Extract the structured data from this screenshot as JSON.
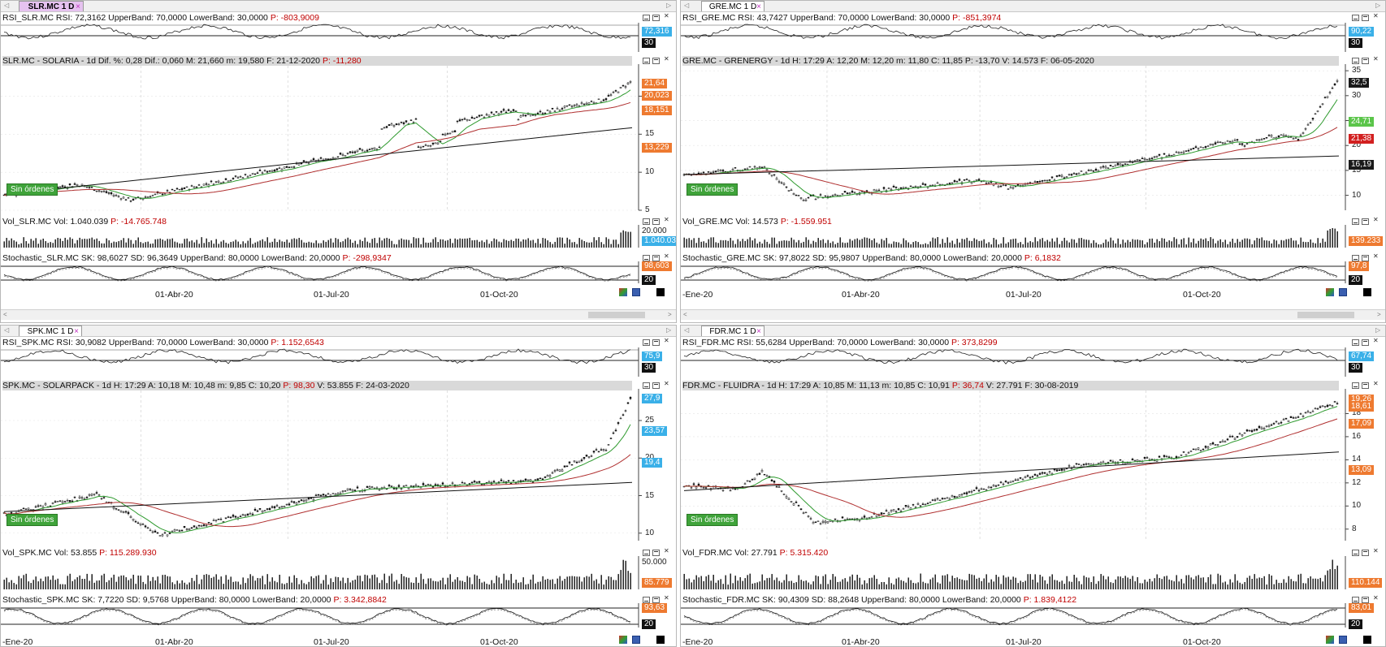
{
  "panels": [
    {
      "id": "slr",
      "tab_label": "SLR.MC 1 D",
      "tab_close": "×",
      "rsi": {
        "header": "RSI_SLR.MC  RSI: 72,3162  UpperBand: 70,0000  LowerBand: 30,0000",
        "p": "P: -803,9009",
        "label_value": "72,316",
        "label_band": "30"
      },
      "price": {
        "header": "SLR.MC - SOLARIA - 1d  Dif. %: 0,28  Dif.: 0,060  M: 21,660  m: 19,580  F: 21-12-2020",
        "p": "P: -11,280",
        "labels": [
          {
            "text": "21,64",
            "color": "orange"
          },
          {
            "text": "20,023",
            "color": "orange"
          },
          {
            "text": "18,151",
            "color": "orange"
          },
          {
            "text": "13,229",
            "color": "orange"
          }
        ],
        "ticks": [
          "20",
          "15",
          "10",
          "5"
        ],
        "orders_button": "Sin órdenes"
      },
      "vol": {
        "header": "Vol_SLR.MC  Vol: 1.040.039",
        "p": "P: -14.765.748",
        "label_value": "1.040.03",
        "ticks": [
          "20.000"
        ]
      },
      "stoch": {
        "header": "Stochastic_SLR.MC  SK: 98,6027  SD: 96,3649  UpperBand: 80,0000  LowerBand: 20,0000",
        "p": "P: -298,9347",
        "label_value": "98,603",
        "label_band": "20"
      },
      "dates": [
        "01-Abr-20",
        "01-Jul-20",
        "01-Oct-20"
      ]
    },
    {
      "id": "gre",
      "tab_label": "GRE.MC 1 D",
      "tab_close": "×",
      "rsi": {
        "header": "RSI_GRE.MC  RSI: 43,7427  UpperBand: 70,0000  LowerBand: 30,0000",
        "p": "P: -851,3974",
        "label_value": "90,22",
        "label_band": "30",
        "extra_band": "70"
      },
      "price": {
        "header": "GRE.MC - GRENERGY - 1d  H: 17:29  A: 12,20  M: 12,20  m: 11,80  C: 11,85  P: -13,70  V: 14.573  F: 06-05-2020",
        "p": "",
        "labels": [
          {
            "text": "32,5",
            "color": "dark"
          },
          {
            "text": "24,71",
            "color": "green"
          },
          {
            "text": "21,38",
            "color": "red"
          },
          {
            "text": "16,19",
            "color": "dark"
          }
        ],
        "ticks": [
          "35",
          "30",
          "25",
          "20",
          "15",
          "10"
        ],
        "orders_button": "Sin órdenes"
      },
      "vol": {
        "header": "Vol_GRE.MC  Vol: 14.573",
        "p": "P: -1.559.951",
        "label_value": "139.233"
      },
      "stoch": {
        "header": "Stochastic_GRE.MC  SK: 97,8022  SD: 95,9807  UpperBand: 80,0000  LowerBand: 20,0000",
        "p": "P: 6,1832",
        "label_value": "97,8",
        "label_band": "20"
      },
      "dates": [
        "-Ene-20",
        "01-Abr-20",
        "01-Jul-20",
        "01-Oct-20"
      ]
    },
    {
      "id": "spk",
      "tab_label": "SPK.MC 1 D",
      "tab_close": "×",
      "rsi": {
        "header": "RSI_SPK.MC  RSI: 30,9082  UpperBand: 70,0000  LowerBand: 30,0000",
        "p": "P: 1.152,6543",
        "label_value": "75,9",
        "label_band": "30"
      },
      "price": {
        "header": "SPK.MC - SOLARPACK - 1d  H: 17:29  A: 10,18  M: 10,48  m: 9,85  C: 10,20",
        "p": "P: 98,30",
        "tail": "V: 53.855  F: 24-03-2020",
        "labels": [
          {
            "text": "27,9",
            "color": "blue"
          },
          {
            "text": "23,57",
            "color": "blue"
          },
          {
            "text": "19,4",
            "color": "blue"
          }
        ],
        "ticks": [
          "25",
          "20",
          "15",
          "10"
        ],
        "orders_button": "Sin órdenes"
      },
      "vol": {
        "header": "Vol_SPK.MC  Vol: 53.855",
        "p": "P: 115.289.930",
        "label_value": "85.779",
        "ticks": [
          "50.000"
        ]
      },
      "stoch": {
        "header": "Stochastic_SPK.MC  SK: 7,7220  SD: 9,5768  UpperBand: 80,0000  LowerBand: 20,0000",
        "p": "P: 3.342,8842",
        "label_value": "93,63",
        "label_band": "20"
      },
      "dates": [
        "-Ene-20",
        "01-Abr-20",
        "01-Jul-20",
        "01-Oct-20"
      ]
    },
    {
      "id": "fdr",
      "tab_label": "FDR.MC 1 D",
      "tab_close": "×",
      "rsi": {
        "header": "RSI_FDR.MC  RSI: 55,6284  UpperBand: 70,0000  LowerBand: 30,0000",
        "p": "P: 373,8299",
        "label_value": "67,74",
        "label_band": "30"
      },
      "price": {
        "header": "FDR.MC - FLUIDRA - 1d  H: 17:29  A: 10,85  M: 11,13  m: 10,85  C: 10,91",
        "p": "P: 36,74",
        "tail": "V: 27.791  F: 30-08-2019",
        "labels": [
          {
            "text": "19,26",
            "color": "orange"
          },
          {
            "text": "18,61",
            "color": "orange"
          },
          {
            "text": "17,09",
            "color": "orange"
          },
          {
            "text": "13,09",
            "color": "orange"
          }
        ],
        "ticks": [
          "18",
          "16",
          "14",
          "12",
          "10",
          "8"
        ],
        "orders_button": "Sin órdenes"
      },
      "vol": {
        "header": "Vol_FDR.MC  Vol: 27.791",
        "p": "P: 5.315.420",
        "label_value": "110.144"
      },
      "stoch": {
        "header": "Stochastic_FDR.MC  SK: 90,4309  SD: 88,2648  UpperBand: 80,0000  LowerBand: 20,0000",
        "p": "P: 1.839,4122",
        "label_value": "83,01",
        "label_band": "20"
      },
      "dates": [
        "-Ene-20",
        "01-Abr-20",
        "01-Jul-20",
        "01-Oct-20"
      ]
    }
  ]
}
